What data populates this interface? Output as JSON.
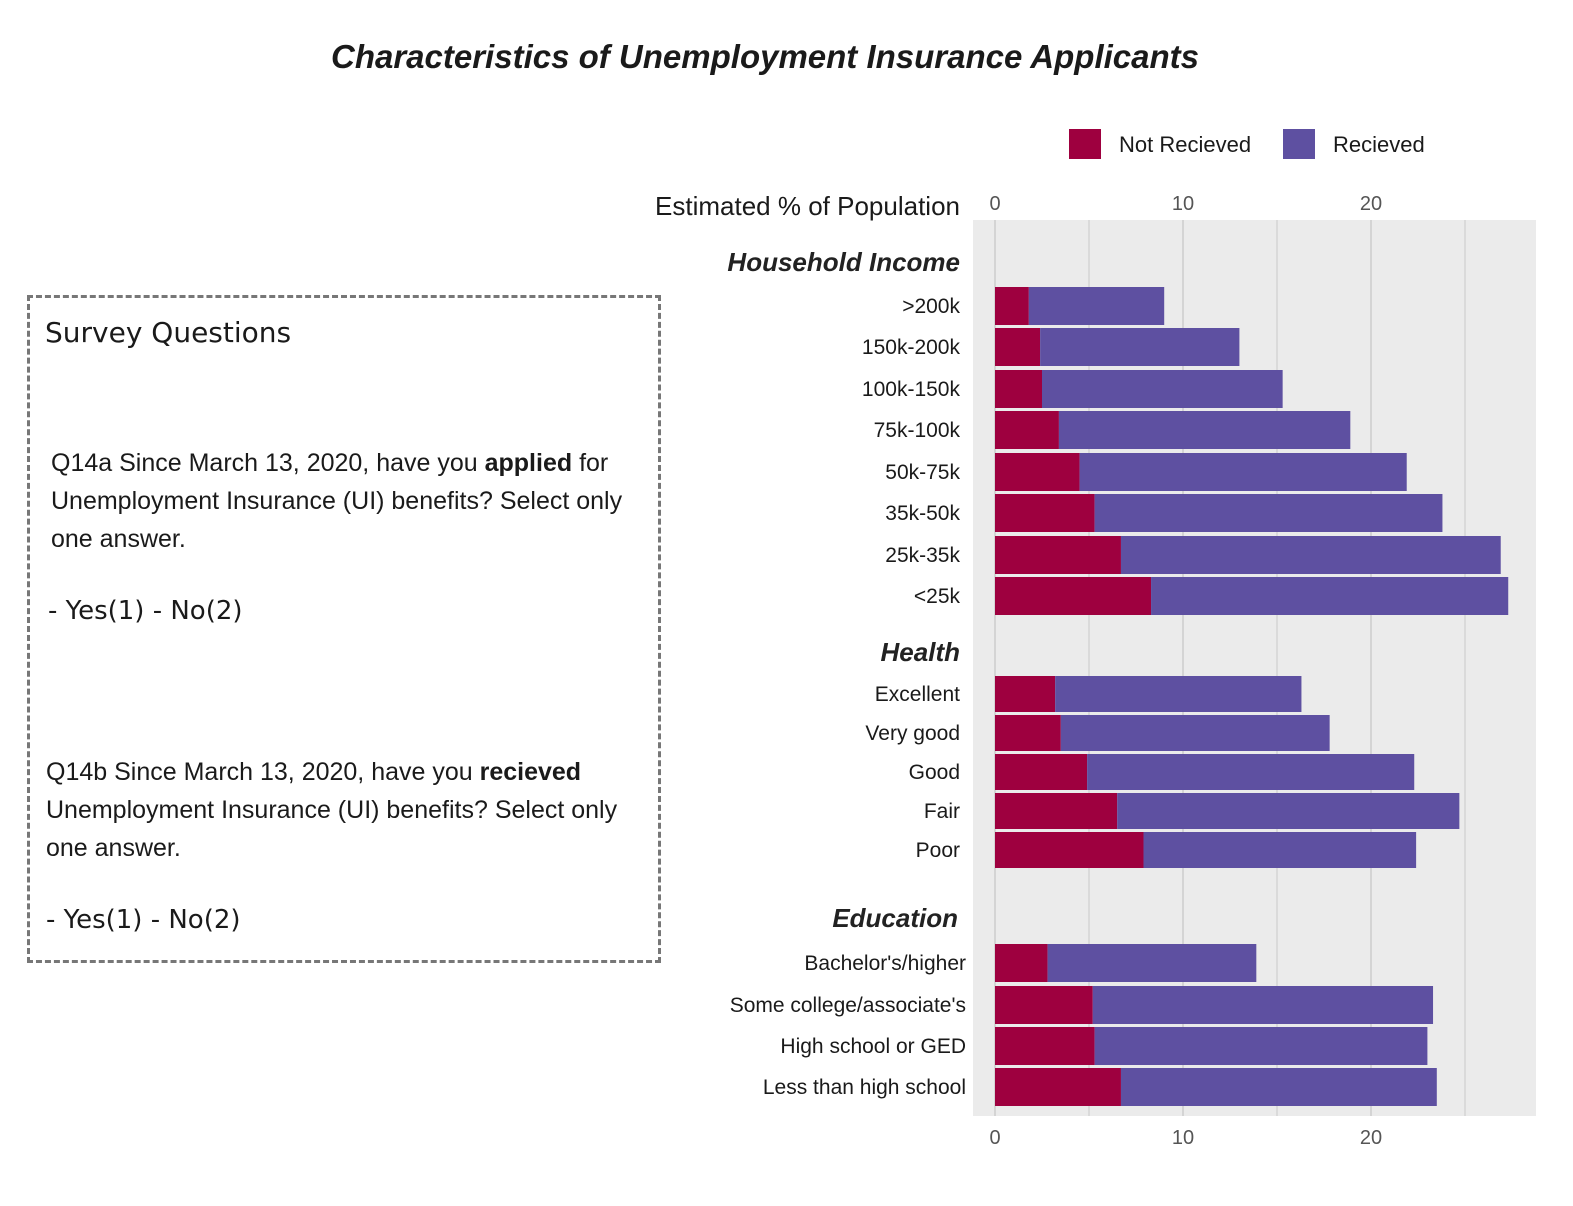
{
  "title": "Characteristics of Unemployment Insurance Applicants",
  "survey": {
    "heading": "Survey Questions",
    "q1": {
      "pre": "Q14a Since March 13, 2020, have you ",
      "bold": "applied",
      "post": " for Unemployment Insurance (UI) benefits? Select only one answer.",
      "answers": "- Yes(1) - No(2)"
    },
    "q2": {
      "pre": "Q14b  Since March 13, 2020, have you ",
      "bold": "recieved",
      "post": " Unemployment Insurance (UI) benefits? Select only one answer.",
      "answers": "- Yes(1) - No(2)"
    }
  },
  "chart_data": {
    "type": "bar",
    "orientation": "horizontal",
    "stacked": true,
    "xlabel": "Estimated % of Population",
    "xlim": [
      0,
      28.7
    ],
    "xticks": [
      0,
      10,
      20
    ],
    "grid": true,
    "legend_position": "top-right",
    "series": [
      {
        "name": "Not Recieved",
        "color": "#9E003F"
      },
      {
        "name": "Recieved",
        "color": "#5E50A1"
      }
    ],
    "groups": [
      {
        "name": "Household Income",
        "categories": [
          {
            "label": ">200k",
            "values": [
              1.8,
              7.2
            ]
          },
          {
            "label": "150k-200k",
            "values": [
              2.4,
              10.6
            ]
          },
          {
            "label": "100k-150k",
            "values": [
              2.5,
              12.8
            ]
          },
          {
            "label": "75k-100k",
            "values": [
              3.4,
              15.5
            ]
          },
          {
            "label": "50k-75k",
            "values": [
              4.5,
              17.4
            ]
          },
          {
            "label": "35k-50k",
            "values": [
              5.3,
              18.5
            ]
          },
          {
            "label": "25k-35k",
            "values": [
              6.7,
              20.2
            ]
          },
          {
            "label": "<25k",
            "values": [
              8.3,
              19.0
            ]
          }
        ]
      },
      {
        "name": "Health",
        "categories": [
          {
            "label": "Excellent",
            "values": [
              3.2,
              13.1
            ]
          },
          {
            "label": "Very good",
            "values": [
              3.5,
              14.3
            ]
          },
          {
            "label": "Good",
            "values": [
              4.9,
              17.4
            ]
          },
          {
            "label": "Fair",
            "values": [
              6.5,
              18.2
            ]
          },
          {
            "label": "Poor",
            "values": [
              7.9,
              14.5
            ]
          }
        ]
      },
      {
        "name": "Education",
        "categories": [
          {
            "label": "Bachelor's/higher",
            "values": [
              2.8,
              11.1
            ]
          },
          {
            "label": "Some college/associate's",
            "values": [
              5.2,
              18.1
            ]
          },
          {
            "label": "High school or GED",
            "values": [
              5.3,
              17.7
            ]
          },
          {
            "label": "Less than high school",
            "values": [
              6.7,
              16.8
            ]
          }
        ]
      }
    ]
  }
}
